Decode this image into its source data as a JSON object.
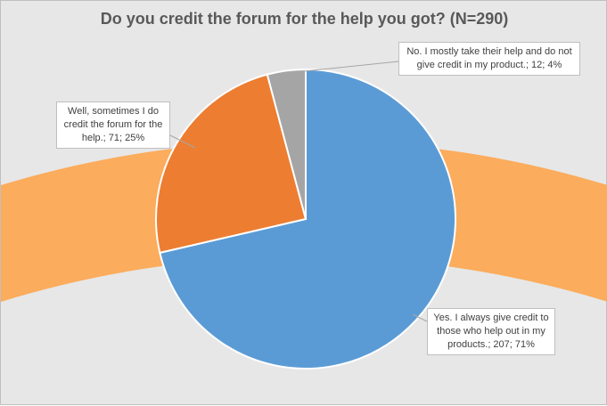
{
  "chart_data": {
    "type": "pie",
    "title": "Do you credit the forum for the help you got? (N=290)",
    "slices": [
      {
        "label": "Yes. I always give credit to those who help out in my products.",
        "value": 207,
        "percent": 71,
        "color": "#5b9bd5",
        "data_label": "Yes. I always give credit to those who help out in my products.; 207; 71%"
      },
      {
        "label": "Well, sometimes I do credit the forum for the help.",
        "value": 71,
        "percent": 25,
        "color": "#ed7d31",
        "data_label": "Well, sometimes I do credit the forum for the help.; 71; 25%"
      },
      {
        "label": "No. I mostly take their help and do not give credit in my product.",
        "value": 12,
        "percent": 4,
        "color": "#a5a5a5",
        "data_label": "No. I mostly take their help and do not give credit in my product.; 12; 4%"
      }
    ],
    "background_color": "#e7e7e7",
    "decoration_color": "#fbac5c"
  }
}
